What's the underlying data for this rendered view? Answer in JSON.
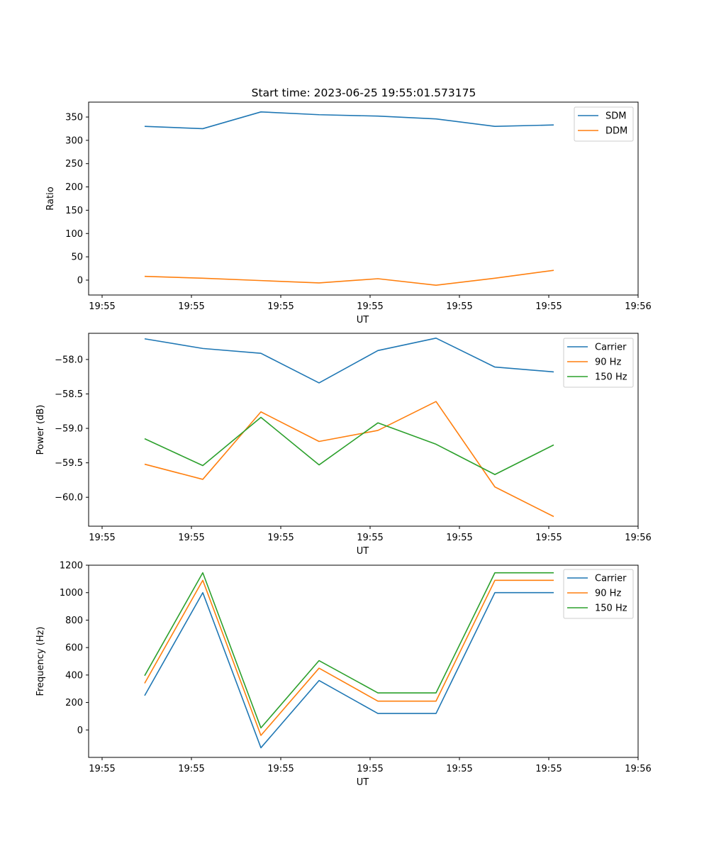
{
  "figure": {
    "title": "Start time: 2023-06-25 19:55:01.573175"
  },
  "colors": {
    "blue": "#1f77b4",
    "orange": "#ff7f0e",
    "green": "#2ca02c"
  },
  "chart_data": [
    {
      "type": "line",
      "title": "Start time: 2023-06-25 19:55:01.573175",
      "xlabel": "UT",
      "ylabel": "Ratio",
      "x_tick_labels": [
        "19:55",
        "19:55",
        "19:55",
        "19:55",
        "19:55",
        "19:55",
        "19:56"
      ],
      "y_ticks": [
        0,
        50,
        100,
        150,
        200,
        250,
        300,
        350
      ],
      "ylim": [
        -32,
        382
      ],
      "legend_position": "top-right",
      "series": [
        {
          "name": "SDM",
          "color": "blue",
          "values": [
            330,
            325,
            361,
            355,
            352,
            346,
            330,
            333
          ]
        },
        {
          "name": "DDM",
          "color": "orange",
          "values": [
            8,
            4,
            -1,
            -6,
            3,
            -11,
            4,
            21
          ]
        }
      ]
    },
    {
      "type": "line",
      "xlabel": "UT",
      "ylabel": "Power (dB)",
      "x_tick_labels": [
        "19:55",
        "19:55",
        "19:55",
        "19:55",
        "19:55",
        "19:55",
        "19:56"
      ],
      "y_ticks": [
        -58.0,
        -58.5,
        -59.0,
        -59.5,
        -60.0
      ],
      "y_tick_labels": [
        "−58.0",
        "−58.5",
        "−59.0",
        "−59.5",
        "−60.0"
      ],
      "ylim": [
        -60.42,
        -57.62
      ],
      "legend_position": "top-right",
      "series": [
        {
          "name": "Carrier",
          "color": "blue",
          "values": [
            -57.7,
            -57.84,
            -57.91,
            -58.34,
            -57.87,
            -57.69,
            -58.11,
            -58.18
          ]
        },
        {
          "name": "90 Hz",
          "color": "orange",
          "values": [
            -59.52,
            -59.74,
            -58.76,
            -59.19,
            -59.03,
            -58.61,
            -59.85,
            -60.28
          ]
        },
        {
          "name": "150 Hz",
          "color": "green",
          "values": [
            -59.15,
            -59.54,
            -58.84,
            -59.53,
            -58.92,
            -59.23,
            -59.67,
            -59.24
          ]
        }
      ]
    },
    {
      "type": "line",
      "xlabel": "UT",
      "ylabel": "Frequency (Hz)",
      "x_tick_labels": [
        "19:55",
        "19:55",
        "19:55",
        "19:55",
        "19:55",
        "19:55",
        "19:56"
      ],
      "y_ticks": [
        0,
        200,
        400,
        600,
        800,
        1000,
        1200
      ],
      "ylim": [
        -200,
        1200
      ],
      "legend_position": "top-right",
      "series": [
        {
          "name": "Carrier",
          "color": "blue",
          "values": [
            250,
            1000,
            -130,
            360,
            120,
            120,
            1000,
            1000
          ]
        },
        {
          "name": "90 Hz",
          "color": "orange",
          "values": [
            340,
            1090,
            -40,
            450,
            210,
            210,
            1090,
            1090
          ]
        },
        {
          "name": "150 Hz",
          "color": "green",
          "values": [
            395,
            1145,
            15,
            505,
            270,
            270,
            1145,
            1145
          ]
        }
      ]
    }
  ]
}
